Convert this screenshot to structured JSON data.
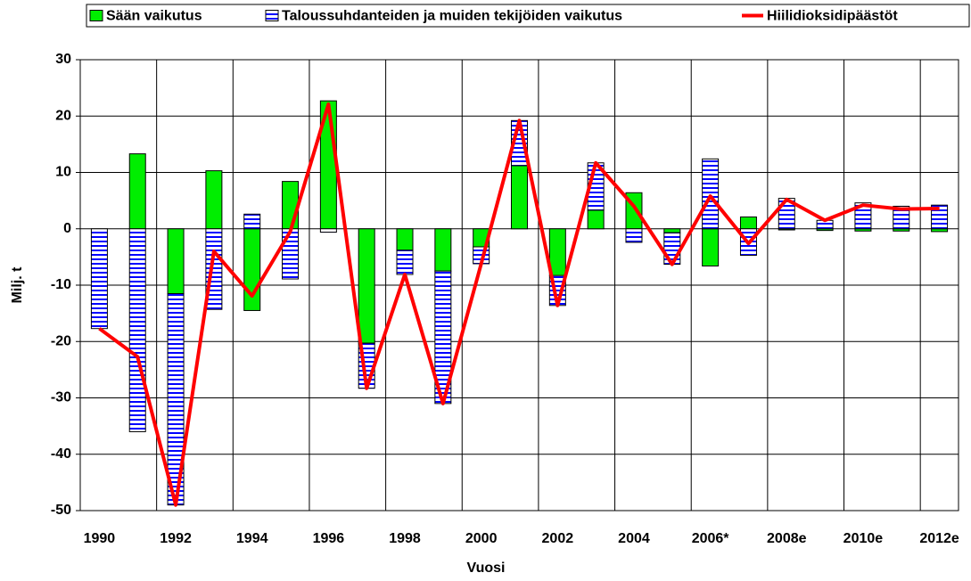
{
  "chart_data": {
    "type": "bar",
    "stacked": true,
    "x_label": "Vuosi",
    "y_label": "Milj. t",
    "categories": [
      "1990",
      null,
      "1992",
      null,
      "1994",
      null,
      "1996",
      null,
      "1998",
      null,
      "2000",
      null,
      "2002",
      null,
      "2004",
      null,
      "2006*",
      null,
      "2008e",
      null,
      "2010e",
      null,
      "2012e"
    ],
    "series": [
      {
        "name": "Sään vaikutus",
        "type": "bar",
        "color": "#00ee00",
        "values": [
          0,
          13.3,
          -11.5,
          10.3,
          -14.5,
          8.4,
          22.7,
          -20.3,
          -3.8,
          -7.5,
          -3.2,
          11.2,
          -8.3,
          3.3,
          6.4,
          -0.7,
          -6.6,
          2.1,
          -0.2,
          -0.3,
          -0.4,
          -0.4,
          -0.5
        ]
      },
      {
        "name": "Taloussuhdanteiden ja muiden tekijöiden vaikutus",
        "type": "bar",
        "color": "#0000ff",
        "values": [
          -17.7,
          -36,
          -37.5,
          -14.3,
          2.6,
          -8.9,
          -0.6,
          -8,
          -4.3,
          -23.5,
          -3,
          8,
          -5.3,
          8.4,
          -2.4,
          -5.6,
          12.4,
          -4.7,
          5.4,
          1.5,
          4.6,
          4,
          4.2
        ]
      },
      {
        "name": "Hiilidioksidipäästöt",
        "type": "line",
        "color": "#ff0000",
        "values": [
          -17.7,
          -22.7,
          -49,
          -4,
          -11.9,
          -0.5,
          22.1,
          -28.3,
          -8.1,
          -31,
          -6.2,
          19.2,
          -13.6,
          11.7,
          4,
          -6.3,
          5.8,
          -2.6,
          5.2,
          1.5,
          4.2,
          3.5,
          3.6
        ]
      }
    ],
    "ylim": [
      -50,
      30
    ],
    "yticks": [
      -50,
      -40,
      -30,
      -20,
      -10,
      0,
      10,
      20,
      30
    ],
    "grid": true,
    "legend": "top"
  }
}
